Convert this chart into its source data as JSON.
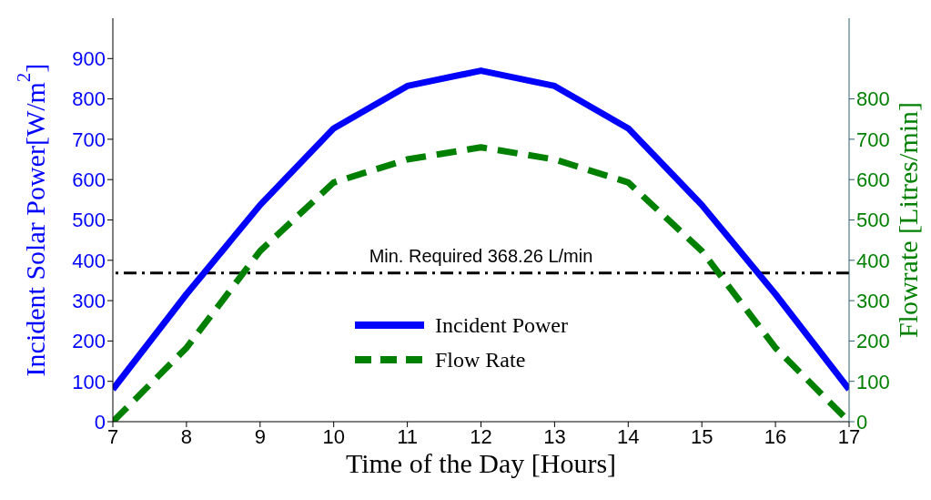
{
  "chart_data": {
    "type": "line",
    "xlabel": "Time of the Day [Hours]",
    "ylabel": "Incident Solar Power[W/m$^{2}$]",
    "y2label": "Flowrate [Litres/min]",
    "x": [
      7,
      8,
      9,
      10,
      11,
      12,
      13,
      14,
      15,
      16,
      17
    ],
    "series": [
      {
        "name": "Incident Power",
        "color": "#0000ff",
        "line_style": "solid",
        "values": [
          80,
          316,
          537,
          727,
          832,
          870,
          832,
          727,
          537,
          316,
          80
        ]
      },
      {
        "name": "Flow Rate",
        "color": "#008000",
        "line_style": "dashed",
        "axis": "y2",
        "values": [
          0,
          183,
          423,
          593,
          650,
          680,
          650,
          593,
          423,
          183,
          0
        ]
      }
    ],
    "xlim": [
      7,
      17
    ],
    "xticks": [
      7,
      8,
      9,
      10,
      11,
      12,
      13,
      14,
      15,
      16,
      17
    ],
    "ylim": [
      0,
      1000
    ],
    "yticks": [
      0,
      100,
      200,
      300,
      400,
      500,
      600,
      700,
      800,
      900
    ],
    "y2lim": [
      0,
      1000
    ],
    "y2ticks": [
      0,
      100,
      200,
      300,
      400,
      500,
      600,
      700,
      800
    ],
    "ref_lines": [
      {
        "axis": "y2",
        "value": 368.26,
        "label": "Min. Required 368.26 L/min",
        "color": "#000000",
        "line_style": "dashdot"
      }
    ],
    "grid": false,
    "legend": "bottom",
    "marker": "none"
  }
}
